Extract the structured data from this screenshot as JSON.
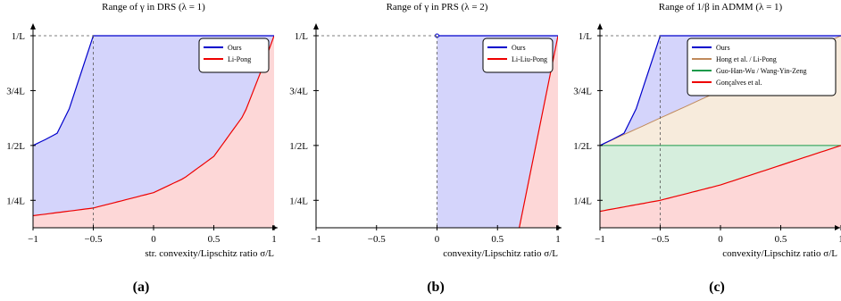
{
  "figure": {
    "panel_labels": [
      "(a)",
      "(b)",
      "(c)"
    ],
    "y_tick_labels": [
      "1/4L",
      "1/2L",
      "3/4L",
      "1/L"
    ],
    "x_tick_labels": [
      "−1",
      "−0.5",
      "0",
      "0.5",
      "1"
    ]
  },
  "chart_data": [
    {
      "type": "area",
      "title": "Range of γ in DRS (λ = 1)",
      "xlabel": "str. convexity/Lipschitz ratio σ/L",
      "ylabel": "",
      "xlim": [
        -1,
        1
      ],
      "ylim": [
        0.125,
        1.0
      ],
      "y_unit": "1/L",
      "x_ticks": [
        -1,
        -0.5,
        0,
        0.5,
        1
      ],
      "y_ticks": [
        0.25,
        0.5,
        0.75,
        1.0
      ],
      "grid": false,
      "legend_position": "top-right",
      "guides": {
        "vertical": -0.5,
        "horizontal": 1.0
      },
      "series": [
        {
          "name": "Ours",
          "color": "#0000cc",
          "fill": "#d4d4fb",
          "x": [
            -1,
            -0.9,
            -0.8,
            -0.7,
            -0.6,
            -0.5,
            1
          ],
          "y": [
            0.5,
            0.5263,
            0.5556,
            0.6667,
            0.8333,
            1.0,
            1.0
          ]
        },
        {
          "name": "Li-Pong",
          "color": "#ee0000",
          "fill": "#fdd7d7",
          "x": [
            -1,
            -0.5,
            0,
            0.25,
            0.5,
            0.75,
            0.9,
            1
          ],
          "y": [
            0.18,
            0.215,
            0.285,
            0.35,
            0.45,
            0.64,
            0.85,
            1.0
          ]
        }
      ]
    },
    {
      "type": "area",
      "title": "Range of γ in PRS (λ = 2)",
      "xlabel": "convexity/Lipschitz ratio σ/L",
      "ylabel": "",
      "xlim": [
        -1,
        1
      ],
      "ylim": [
        0.125,
        1.0
      ],
      "y_unit": "1/L",
      "x_ticks": [
        -1,
        -0.5,
        0,
        0.5,
        1
      ],
      "y_ticks": [
        0.25,
        0.5,
        0.75,
        1.0
      ],
      "grid": false,
      "legend_position": "top-right",
      "guides": {
        "vertical": 0,
        "horizontal": 1.0
      },
      "series": [
        {
          "name": "Ours",
          "color": "#0000cc",
          "fill": "#d4d4fb",
          "x": [
            0,
            1
          ],
          "y": [
            1.0,
            1.0
          ]
        },
        {
          "name": "Li-Liu-Pong",
          "color": "#ee0000",
          "fill": "#fdd7d7",
          "x": [
            0.68,
            1
          ],
          "y": [
            0.125,
            1.0
          ]
        }
      ]
    },
    {
      "type": "area",
      "title": "Range of 1/β in ADMM (λ = 1)",
      "xlabel": "convexity/Lipschitz ratio σ/L",
      "ylabel": "",
      "xlim": [
        -1,
        1
      ],
      "ylim": [
        0.125,
        1.0
      ],
      "y_unit": "1/L",
      "x_ticks": [
        -1,
        -0.5,
        0,
        0.5,
        1
      ],
      "y_ticks": [
        0.25,
        0.5,
        0.75,
        1.0
      ],
      "grid": false,
      "legend_position": "top-right",
      "guides": {
        "vertical": -0.5,
        "horizontal": 1.0
      },
      "series": [
        {
          "name": "Ours",
          "color": "#0000cc",
          "fill": "#d4d4fb",
          "x": [
            -1,
            -0.9,
            -0.8,
            -0.7,
            -0.6,
            -0.5,
            1
          ],
          "y": [
            0.5,
            0.5263,
            0.5556,
            0.6667,
            0.8333,
            1.0,
            1.0
          ]
        },
        {
          "name": "Hong et al. / Li-Pong",
          "color": "#c08a5c",
          "fill": "#f7ebdc",
          "x": [
            -1,
            1
          ],
          "y": [
            0.5,
            1.0
          ]
        },
        {
          "name": "Guo-Han-Wu / Wang-Yin-Zeng",
          "color": "#1a9a4a",
          "fill": "#d6eedd",
          "x": [
            -1,
            1
          ],
          "y": [
            0.5,
            0.5
          ]
        },
        {
          "name": "Gonçalves et al.",
          "color": "#ee0000",
          "fill": "#fdd7d7",
          "x": [
            -1,
            -0.5,
            0,
            0.5,
            1
          ],
          "y": [
            0.2,
            0.25,
            0.32,
            0.41,
            0.5
          ]
        }
      ]
    }
  ]
}
